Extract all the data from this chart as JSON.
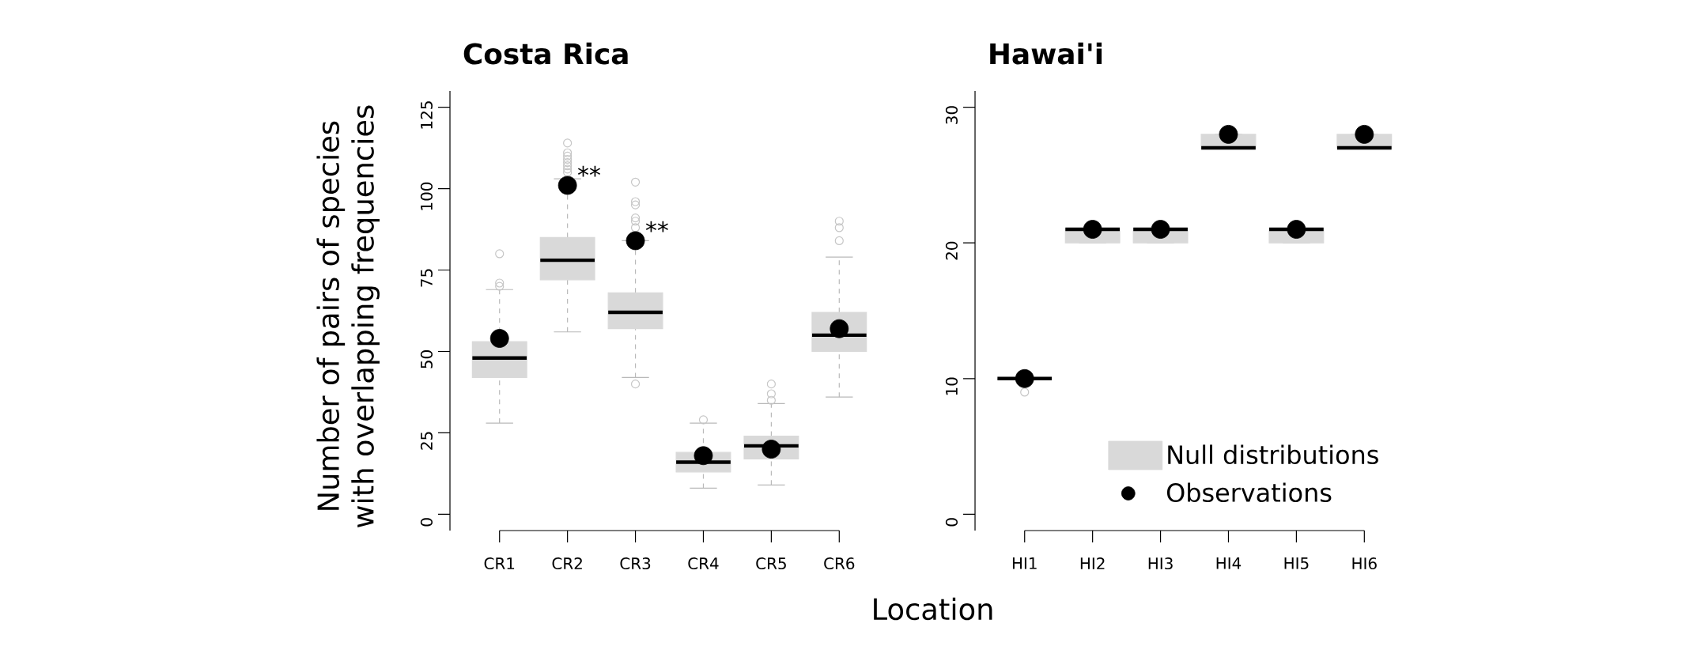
{
  "chart_data": [
    {
      "type": "box",
      "title": "Costa Rica",
      "xlabel": "Location",
      "ylabel": "Number of pairs of species with overlapping frequencies",
      "categories": [
        "CR1",
        "CR2",
        "CR3",
        "CR4",
        "CR5",
        "CR6"
      ],
      "ylim": [
        -5,
        130
      ],
      "yticks": [
        0,
        25,
        50,
        75,
        100,
        125
      ],
      "marker": "circle",
      "series": [
        {
          "color": "#d9d9d9",
          "boxes": [
            {
              "low": 28,
              "q1": 42,
              "median": 48,
              "q3": 53,
              "high": 69,
              "outliers": [
                70,
                71,
                80
              ]
            },
            {
              "low": 56,
              "q1": 72,
              "median": 78,
              "q3": 85,
              "high": 103,
              "outliers": [
                105,
                106,
                107,
                108,
                109,
                110,
                111,
                114
              ]
            },
            {
              "low": 42,
              "q1": 57,
              "median": 62,
              "q3": 68,
              "high": 84,
              "outliers": [
                40,
                88,
                90,
                91,
                95,
                96,
                102
              ]
            },
            {
              "low": 8,
              "q1": 13,
              "median": 16,
              "q3": 19,
              "high": 28,
              "outliers": [
                29
              ]
            },
            {
              "low": 9,
              "q1": 17,
              "median": 21,
              "q3": 24,
              "high": 34,
              "outliers": [
                35,
                37,
                40
              ]
            },
            {
              "low": 36,
              "q1": 50,
              "median": 55,
              "q3": 62,
              "high": 79,
              "outliers": [
                84,
                88,
                90
              ]
            }
          ]
        },
        {
          "type": "scatter",
          "color": "#000000",
          "x": [
            "CR1",
            "CR2",
            "CR3",
            "CR4",
            "CR5",
            "CR6"
          ],
          "values": [
            54,
            101,
            84,
            18,
            20,
            57
          ]
        }
      ],
      "annotations": [
        {
          "text": "**",
          "x": "CR2",
          "y": 101
        },
        {
          "text": "**",
          "x": "CR3",
          "y": 84
        }
      ]
    },
    {
      "type": "box",
      "title": "Hawai'i",
      "categories": [
        "HI1",
        "HI2",
        "HI3",
        "HI4",
        "HI5",
        "HI6"
      ],
      "ylim": [
        -1.2,
        31.2
      ],
      "yticks": [
        0,
        10,
        20,
        30
      ],
      "marker": "circle",
      "legend": "bottom right",
      "series": [
        {
          "name": "Null distributions",
          "color": "#d9d9d9",
          "boxes": [
            {
              "low": 10,
              "q1": 10,
              "median": 10,
              "q3": 10,
              "high": 10,
              "outliers": [
                9
              ]
            },
            {
              "low": 20,
              "q1": 20,
              "median": 21,
              "q3": 21,
              "high": 21
            },
            {
              "low": 20,
              "q1": 20,
              "median": 21,
              "q3": 21,
              "high": 21
            },
            {
              "low": 27,
              "q1": 27,
              "median": 27,
              "q3": 28,
              "high": 28
            },
            {
              "low": 20,
              "q1": 20,
              "median": 21,
              "q3": 21,
              "high": 21
            },
            {
              "low": 27,
              "q1": 27,
              "median": 27,
              "q3": 28,
              "high": 28
            }
          ]
        },
        {
          "type": "scatter",
          "name": "Observations",
          "color": "#000000",
          "x": [
            "HI1",
            "HI2",
            "HI3",
            "HI4",
            "HI5",
            "HI6"
          ],
          "values": [
            10,
            21,
            21,
            28,
            21,
            28
          ]
        }
      ]
    }
  ]
}
